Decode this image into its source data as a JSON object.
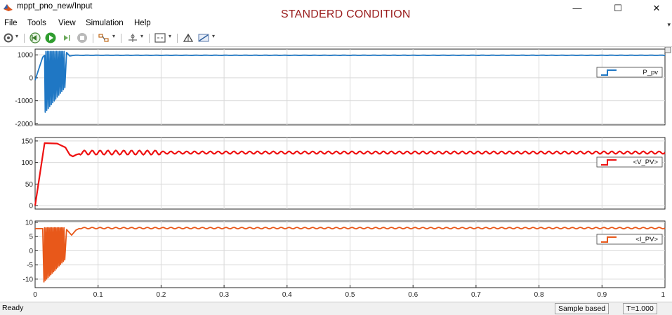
{
  "window": {
    "title": "mppt_pno_new/Input",
    "banner": "STANDERD CONDITION",
    "controls": {
      "minimize": "—",
      "maximize": "☐",
      "close": "✕"
    }
  },
  "menu": [
    "File",
    "Tools",
    "View",
    "Simulation",
    "Help"
  ],
  "toolbar": {
    "icons": [
      "settings-icon",
      "step-back-icon",
      "run-icon",
      "step-forward-icon",
      "stop-icon",
      "highlight-icon",
      "cursor-icon",
      "zoom-fit-icon",
      "autoscale-icon",
      "style-icon"
    ]
  },
  "colors": {
    "p_pv": "#1f77c4",
    "v_pv": "#ee1111",
    "i_pv": "#e8581a",
    "grid": "#d9d9d9"
  },
  "chart_data": [
    {
      "type": "line",
      "series": [
        {
          "name": "P_pv",
          "steady": 980
        }
      ],
      "ylim": [
        -2050,
        1250
      ],
      "yticks": [
        1000,
        0,
        -1000,
        -2000
      ],
      "ytick_labels": [
        "1000",
        "0",
        "-1000",
        "-2000"
      ],
      "xlim": [
        0,
        1
      ],
      "grid": true,
      "legend": "right"
    },
    {
      "type": "line",
      "series": [
        {
          "name": "<V_PV>",
          "steady": 123
        }
      ],
      "ylim": [
        -8,
        158
      ],
      "yticks": [
        150,
        100,
        50,
        0
      ],
      "ytick_labels": [
        "150",
        "100",
        "50",
        "0"
      ],
      "xlim": [
        0,
        1
      ],
      "grid": true,
      "legend": "right"
    },
    {
      "type": "line",
      "series": [
        {
          "name": "<I_PV>",
          "steady": 8
        }
      ],
      "ylim": [
        -13,
        10.5
      ],
      "yticks": [
        10,
        5,
        0,
        -5,
        -10
      ],
      "ytick_labels": [
        "10",
        "5",
        "0",
        "-5",
        "-10"
      ],
      "xlim": [
        0,
        1
      ],
      "xticks": [
        0,
        0.1,
        0.2,
        0.3,
        0.4,
        0.5,
        0.6,
        0.7,
        0.8,
        0.9,
        1
      ],
      "xtick_labels": [
        "0",
        "0.1",
        "0.2",
        "0.3",
        "0.4",
        "0.5",
        "0.6",
        "0.7",
        "0.8",
        "0.9",
        "1"
      ],
      "grid": true,
      "legend": "right"
    }
  ],
  "status": {
    "left": "Ready",
    "mode": "Sample based",
    "time": "T=1.000"
  }
}
